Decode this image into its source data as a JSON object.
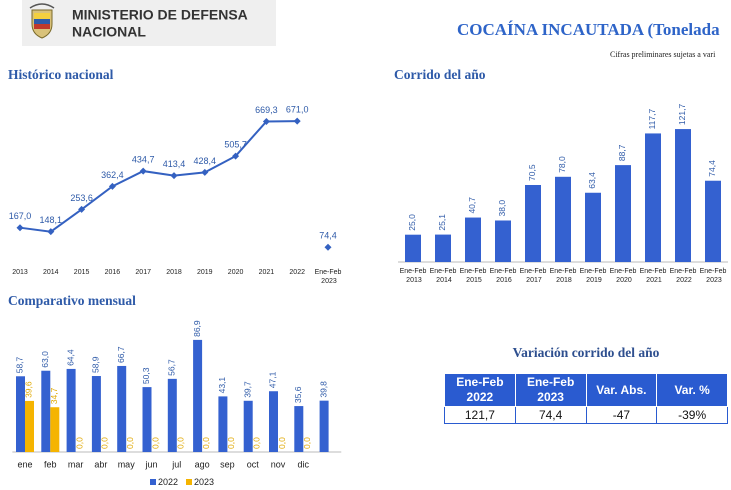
{
  "header": {
    "ministry": [
      "MINISTERIO DE DEFENSA",
      "NACIONAL"
    ],
    "title": "COCAÍNA INCAUTADA (Tonelada",
    "subtitle": "Cifras preliminares sujetas a vari"
  },
  "chart_data": [
    {
      "type": "line",
      "title": "Histórico nacional",
      "categories": [
        "2013",
        "2014",
        "2015",
        "2016",
        "2017",
        "2018",
        "2019",
        "2020",
        "2021",
        "2022",
        "Ene-Feb 2023"
      ],
      "series": [
        {
          "color": "#3461c1",
          "values": [
            167.0,
            148.1,
            253.6,
            362.4,
            434.7,
            413.4,
            428.4,
            505.7,
            669.3,
            671.0,
            null
          ],
          "value_labels": [
            "167,0",
            "148,1",
            "253,6",
            "362,4",
            "434,7",
            "413,4",
            "428,4",
            "505,7",
            "669,3",
            "671,0",
            null
          ]
        },
        {
          "color": "#3461c1",
          "values": [
            null,
            null,
            null,
            null,
            null,
            null,
            null,
            null,
            null,
            null,
            74.4
          ],
          "value_labels": [
            null,
            null,
            null,
            null,
            null,
            null,
            null,
            null,
            null,
            null,
            "74,4"
          ]
        }
      ],
      "ylim": [
        0,
        700
      ]
    },
    {
      "type": "bar",
      "title": "Corrido del año",
      "categories": [
        "Ene-Feb 2013",
        "Ene-Feb 2014",
        "Ene-Feb 2015",
        "Ene-Feb 2016",
        "Ene-Feb 2017",
        "Ene-Feb 2018",
        "Ene-Feb 2019",
        "Ene-Feb 2020",
        "Ene-Feb 2021",
        "Ene-Feb 2022",
        "Ene-Feb 2023"
      ],
      "values": [
        25.0,
        25.1,
        40.7,
        38.0,
        70.5,
        78.0,
        63.4,
        88.7,
        117.7,
        121.7,
        74.4
      ],
      "value_labels": [
        "25,0",
        "25,1",
        "40,7",
        "38,0",
        "70,5",
        "78,0",
        "63,4",
        "88,7",
        "117,7",
        "121,7",
        "74,4"
      ],
      "color": "#3461d0",
      "ylim": [
        0,
        130
      ]
    },
    {
      "type": "grouped-bar",
      "title": "Comparativo mensual",
      "categories": [
        "ene",
        "feb",
        "mar",
        "abr",
        "may",
        "jun",
        "jul",
        "ago",
        "sep",
        "oct",
        "nov",
        "dic",
        null
      ],
      "series": [
        {
          "name": "2022",
          "color": "#3461d0",
          "values": [
            58.7,
            63.0,
            64.4,
            58.9,
            66.7,
            50.3,
            56.7,
            86.9,
            43.1,
            39.7,
            47.1,
            35.6,
            39.8
          ],
          "value_labels": [
            "58,7",
            "63,0",
            "64,4",
            "58,9",
            "66,7",
            "50,3",
            "56,7",
            "86,9",
            "43,1",
            "39,7",
            "47,1",
            "35,6",
            "39,8"
          ]
        },
        {
          "name": "2023",
          "color": "#f5b400",
          "values": [
            39.6,
            34.7,
            0,
            0,
            0,
            0,
            0,
            0,
            0,
            0,
            0,
            0,
            null
          ],
          "value_labels": [
            "39,6",
            "34,7",
            "0,0",
            "0,0",
            "0,0",
            "0,0",
            "0,0",
            "0,0",
            "0,0",
            "0,0",
            "0,0",
            "0,0",
            null
          ]
        }
      ],
      "ylim": [
        0,
        100
      ],
      "legend": "bottom"
    }
  ],
  "table": {
    "title": "Variación corrido del año",
    "header": [
      "Ene-Feb 2022",
      "Ene-Feb 2023",
      "Var. Abs.",
      "Var. %"
    ],
    "rows": [
      [
        "121,7",
        "74,4",
        "-47",
        "-39%"
      ]
    ]
  }
}
